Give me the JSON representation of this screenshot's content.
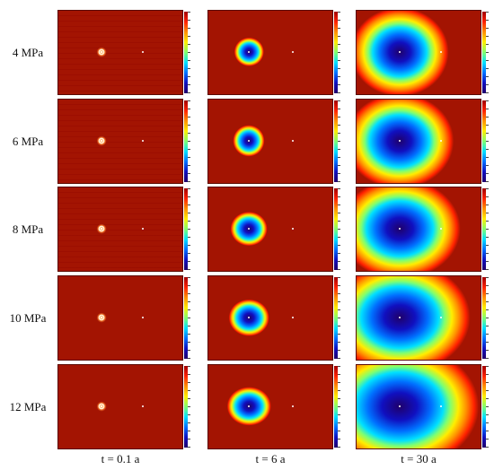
{
  "rows": [
    "4 MPa",
    "6 MPa",
    "8 MPa",
    "10 MPa",
    "12 MPa"
  ],
  "columns": [
    "t = 0.1 a",
    "t = 6 a",
    "t = 30 a"
  ],
  "colormap": [
    "#a00000",
    "#ff2000",
    "#ff9000",
    "#ffee00",
    "#80ff70",
    "#00e0ff",
    "#0070ff",
    "#1010c0",
    "#20006a"
  ],
  "background_color": "#a31402"
}
